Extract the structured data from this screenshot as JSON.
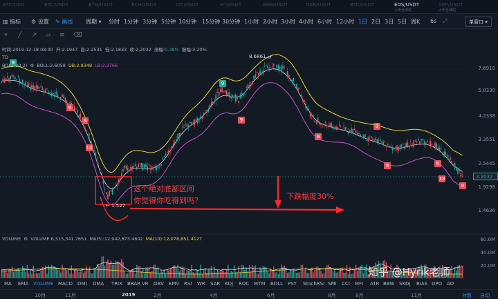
{
  "pairs": [
    {
      "label": "BTC/USD",
      "sub": ""
    },
    {
      "label": "BTC/USDT",
      "sub": ""
    },
    {
      "label": "ETH/USDT",
      "sub": ""
    },
    {
      "label": "BCH/USDT",
      "sub": ""
    },
    {
      "label": "LTC/USDT",
      "sub": ""
    },
    {
      "label": "HT/USDT",
      "sub": ""
    },
    {
      "label": "BNB/USDT",
      "sub": ""
    },
    {
      "label": "OKB/USDT",
      "sub": ""
    },
    {
      "label": "BTC/USDT",
      "sub": ""
    },
    {
      "label": "EOS/USDT",
      "sub": "火币全球站"
    },
    {
      "label": "XRP/USDT",
      "sub": "火币全球站"
    }
  ],
  "toolbar": {
    "indicator": "指标",
    "settings": "设置",
    "drawing": "画线",
    "period": "周期",
    "intervals": [
      "分时",
      "1分钟",
      "3分钟",
      "5分钟",
      "10分钟",
      "15分钟",
      "30分钟",
      "1小时",
      "2小时",
      "3小时",
      "4小时",
      "6小时",
      "12小时",
      "1日",
      "2日",
      "3日",
      "5日",
      "周K"
    ],
    "selected_interval": "1日",
    "seconds": "6s",
    "single_window": "单窗口"
  },
  "info": {
    "time": "时间:2019-12-18 08:00",
    "open": "开:2.1947",
    "high": "高:2.2531",
    "low": "低:2.1833",
    "close": "收:2.2032",
    "change_label": "涨幅:",
    "change": "0.38%",
    "amplitude": "振幅:3.20%",
    "td": "TD",
    "boll": "BOLL(20,2)",
    "boll_val": "BOLL:2.6058",
    "ub": "UB:2.9349",
    "lb": "LB:2.2766"
  },
  "price_axis": [
    "7.6910",
    "5.8330",
    "4.2338",
    "3.3551",
    "2.5445",
    "1.9298",
    "1.4636"
  ],
  "current_price": "2.2032",
  "max_label": "8.6861",
  "min_label": "1.527",
  "volume": {
    "label": "VOLUME",
    "value": "VOLUME:6,515,341.7651",
    "ma5": "MA(5):12,942,673.4602",
    "ma10": "MA(10):12,078,851.4127",
    "axis": [
      "60.0M",
      "40.0M",
      "20.0M"
    ]
  },
  "annotations": {
    "line1": "这个绝对底部区间",
    "line2": "你觉得你吃得到吗？",
    "drop": "下跌幅度30%",
    "watermark": "知乎 @Hyrik老师"
  },
  "td_signals": [
    {
      "n": "9",
      "type": "g"
    },
    {
      "n": "9",
      "type": "r"
    },
    {
      "n": "9",
      "type": "r"
    },
    {
      "n": "13",
      "type": "r"
    },
    {
      "n": "9",
      "type": "g"
    },
    {
      "n": "9",
      "type": "r"
    },
    {
      "n": "9",
      "type": "r"
    },
    {
      "n": "9",
      "type": "r"
    },
    {
      "n": "9",
      "type": "r"
    },
    {
      "n": "9",
      "type": "r"
    },
    {
      "n": "13",
      "type": "r"
    },
    {
      "n": "9",
      "type": "r"
    }
  ],
  "indicators": [
    "MA",
    "EMA",
    "VOLUME",
    "MACD",
    "DMI",
    "DMA",
    "TRIX",
    "BRAR",
    "VR",
    "OBV",
    "EMV",
    "RSI",
    "WR",
    "SAR",
    "KDJ",
    "ROC",
    "MTM",
    "BOLL",
    "PSY",
    "StochRSI",
    "SMI",
    "CCI",
    "MFI",
    "ATR",
    "BBW",
    "SKDJ",
    "BIAS",
    "DPO",
    "AO"
  ],
  "selected_indicator": "VOLUME",
  "months": [
    "10月",
    "11月",
    "2019",
    "2月",
    "4月",
    "6月",
    "8月",
    "9月",
    "11月"
  ],
  "footer": {
    "compare": "对数",
    "auto": "自动"
  }
}
